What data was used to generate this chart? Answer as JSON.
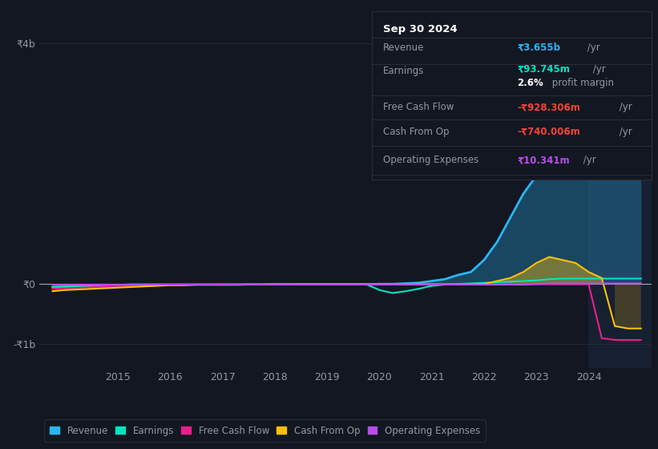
{
  "background_color": "#131722",
  "plot_bg_color": "#131722",
  "grid_color": "#2a2e39",
  "title_box": {
    "date": "Sep 30 2024",
    "revenue_label": "Revenue",
    "revenue_val": "₹3.655b",
    "revenue_color": "#00bcd4",
    "earnings_label": "Earnings",
    "earnings_val": "₹93.745m",
    "earnings_color": "#00e5c0",
    "margin_val": "2.6%",
    "margin_text": " profit margin",
    "fcf_label": "Free Cash Flow",
    "fcf_val": "-₹928.306m",
    "fcf_color": "#f44336",
    "cashop_label": "Cash From Op",
    "cashop_val": "-₹740.006m",
    "cashop_color": "#f44336",
    "opex_label": "Operating Expenses",
    "opex_val": "₹10.341m",
    "opex_color": "#b44fe8"
  },
  "years": [
    2013.75,
    2014.0,
    2014.25,
    2014.5,
    2014.75,
    2015.0,
    2015.25,
    2015.5,
    2015.75,
    2016.0,
    2016.25,
    2016.5,
    2016.75,
    2017.0,
    2017.25,
    2017.5,
    2017.75,
    2018.0,
    2018.25,
    2018.5,
    2018.75,
    2019.0,
    2019.25,
    2019.5,
    2019.75,
    2020.0,
    2020.25,
    2020.5,
    2020.75,
    2021.0,
    2021.25,
    2021.5,
    2021.75,
    2022.0,
    2022.25,
    2022.5,
    2022.75,
    2023.0,
    2023.25,
    2023.5,
    2023.75,
    2024.0,
    2024.25,
    2024.5,
    2024.75,
    2025.0
  ],
  "revenue": [
    -0.05,
    -0.05,
    -0.04,
    -0.03,
    -0.02,
    -0.02,
    -0.01,
    -0.01,
    -0.01,
    -0.01,
    -0.01,
    -0.01,
    -0.01,
    -0.01,
    -0.01,
    -0.005,
    -0.005,
    -0.005,
    -0.005,
    -0.005,
    -0.005,
    -0.005,
    -0.005,
    -0.005,
    -0.005,
    0.0,
    0.0,
    0.01,
    0.02,
    0.05,
    0.08,
    0.15,
    0.2,
    0.4,
    0.7,
    1.1,
    1.5,
    1.8,
    2.1,
    2.3,
    2.5,
    2.7,
    3.0,
    3.4,
    3.8,
    4.1
  ],
  "earnings": [
    -0.05,
    -0.04,
    -0.04,
    -0.03,
    -0.03,
    -0.02,
    -0.02,
    -0.01,
    -0.01,
    -0.01,
    -0.01,
    -0.01,
    -0.01,
    -0.01,
    -0.01,
    -0.01,
    -0.01,
    -0.01,
    -0.01,
    -0.005,
    -0.005,
    -0.005,
    -0.005,
    -0.005,
    -0.005,
    -0.1,
    -0.15,
    -0.12,
    -0.08,
    -0.03,
    -0.01,
    0.0,
    0.01,
    0.02,
    0.03,
    0.04,
    0.05,
    0.06,
    0.08,
    0.09,
    0.09,
    0.09,
    0.09,
    0.09,
    0.09,
    0.09
  ],
  "free_cash_flow": [
    -0.08,
    -0.07,
    -0.06,
    -0.05,
    -0.04,
    -0.03,
    -0.03,
    -0.02,
    -0.02,
    -0.01,
    -0.01,
    -0.01,
    -0.01,
    -0.005,
    -0.005,
    -0.005,
    -0.005,
    -0.005,
    -0.005,
    -0.005,
    -0.005,
    -0.005,
    -0.005,
    -0.005,
    -0.005,
    -0.005,
    -0.005,
    -0.005,
    -0.005,
    -0.005,
    -0.005,
    -0.005,
    -0.005,
    -0.005,
    -0.005,
    -0.005,
    -0.005,
    -0.005,
    -0.005,
    -0.005,
    -0.005,
    -0.005,
    -0.9,
    -0.93,
    -0.93,
    -0.93
  ],
  "cash_from_op": [
    -0.12,
    -0.1,
    -0.09,
    -0.08,
    -0.07,
    -0.06,
    -0.05,
    -0.04,
    -0.03,
    -0.02,
    -0.02,
    -0.01,
    -0.01,
    -0.01,
    -0.01,
    -0.01,
    -0.01,
    -0.005,
    -0.005,
    -0.005,
    -0.005,
    -0.005,
    -0.005,
    -0.005,
    -0.005,
    -0.005,
    -0.005,
    -0.005,
    -0.005,
    -0.005,
    -0.005,
    -0.005,
    -0.005,
    0.0,
    0.05,
    0.1,
    0.2,
    0.35,
    0.45,
    0.4,
    0.35,
    0.2,
    0.1,
    -0.7,
    -0.74,
    -0.74
  ],
  "operating_expenses": [
    -0.01,
    -0.01,
    -0.01,
    -0.01,
    -0.01,
    -0.01,
    -0.01,
    -0.01,
    -0.01,
    -0.01,
    -0.01,
    -0.01,
    -0.01,
    -0.01,
    -0.01,
    -0.01,
    -0.01,
    -0.01,
    -0.01,
    -0.01,
    -0.01,
    -0.01,
    -0.01,
    -0.01,
    -0.01,
    -0.01,
    -0.01,
    -0.01,
    -0.01,
    -0.01,
    -0.01,
    -0.01,
    -0.01,
    -0.01,
    -0.01,
    -0.01,
    -0.01,
    0.0,
    0.01,
    0.01,
    0.01,
    0.01,
    0.01,
    0.01,
    0.01,
    0.01
  ],
  "revenue_color": "#29b6f6",
  "earnings_color": "#00e5c0",
  "fcf_color": "#e91e8c",
  "cash_from_op_color": "#ffc107",
  "opex_color": "#b44fe8",
  "yticks": [
    4,
    0,
    -1
  ],
  "ytick_labels": [
    "₹4b",
    "₹0",
    "-₹1b"
  ],
  "xtick_years": [
    2015,
    2016,
    2017,
    2018,
    2019,
    2020,
    2021,
    2022,
    2023,
    2024
  ],
  "ylim": [
    -1.4,
    4.5
  ],
  "xlim": [
    2013.5,
    2025.2
  ],
  "highlight_x": 2024.0,
  "legend_items": [
    "Revenue",
    "Earnings",
    "Free Cash Flow",
    "Cash From Op",
    "Operating Expenses"
  ],
  "legend_colors": [
    "#29b6f6",
    "#00e5c0",
    "#e91e8c",
    "#ffc107",
    "#b44fe8"
  ]
}
